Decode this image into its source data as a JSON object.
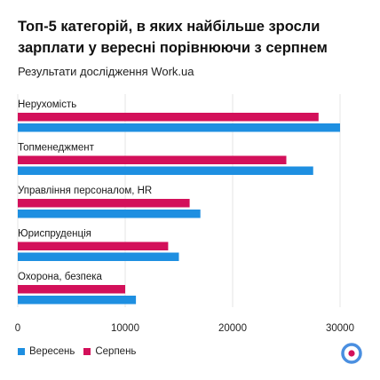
{
  "colors": {
    "series_sep": "#1e8fe1",
    "series_aug": "#d3105a",
    "grid": "#e6e6e6",
    "logo_ring": "#4a8fe0"
  },
  "logo": {
    "icon": "work-ua-logo-icon"
  },
  "chart_data": {
    "type": "bar",
    "orientation": "horizontal",
    "title": "Топ-5 категорій, в яких найбільше зросли зарплати у вересні порівнюючи з серпнем",
    "subtitle": "Результати дослідження Work.ua",
    "categories": [
      "Нерухомість",
      "Топменеджмент",
      "Управління персоналом, HR",
      "Юриспруденція",
      "Охорона, безпека"
    ],
    "series": [
      {
        "name": "Серпень",
        "color": "#d3105a",
        "values": [
          28000,
          25000,
          16000,
          14000,
          10000
        ]
      },
      {
        "name": "Вересень",
        "color": "#1e8fe1",
        "values": [
          30000,
          27500,
          17000,
          15000,
          11000
        ]
      }
    ],
    "legend_order": [
      "Вересень",
      "Серпень"
    ],
    "xlim": [
      0,
      30000
    ],
    "xticks": [
      0,
      10000,
      20000,
      30000
    ],
    "xtick_labels": [
      "0",
      "10000",
      "20000",
      "30000"
    ],
    "grid": true,
    "legend_position": "bottom-left"
  }
}
